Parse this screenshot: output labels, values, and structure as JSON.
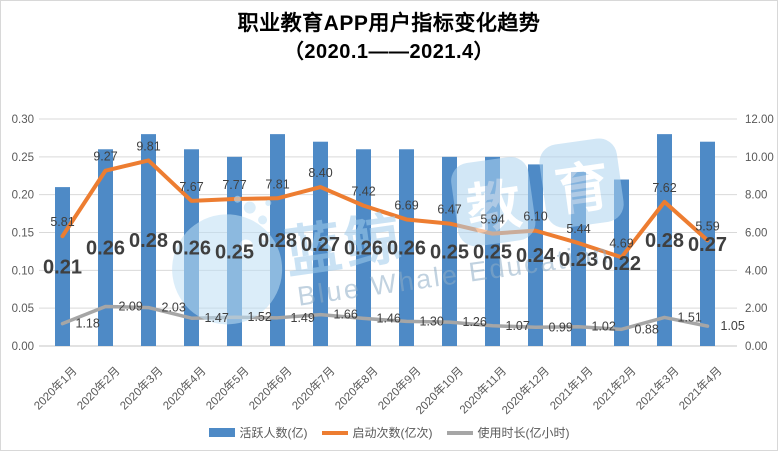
{
  "title": {
    "line1": "职业教育APP用户指标变化趋势",
    "line2": "（2020.1——2021.4）"
  },
  "legend": [
    {
      "label": "活跃人数(亿)",
      "type": "bar",
      "color": "#4E8AC6"
    },
    {
      "label": "启动次数(亿次)",
      "type": "line",
      "color": "#ED7D31"
    },
    {
      "label": "使用时长(亿小时)",
      "type": "line",
      "color": "#A6A6A6"
    }
  ],
  "watermark": {
    "brand_cn": "蓝鲸",
    "tile1": "教",
    "tile2": "育",
    "caption": "Blue Whale Education"
  },
  "colors": {
    "bar": "#4E8AC6",
    "launch_line": "#ED7D31",
    "usage_line": "#A6A6A6",
    "grid": "#D9D9D9",
    "axis_text": "#595959",
    "data_label": "#3F3F3F"
  },
  "chart_data": {
    "type": "combo",
    "title": "职业教育APP用户指标变化趋势（2020.1——2021.4）",
    "categories": [
      "2020年1月",
      "2020年2月",
      "2020年3月",
      "2020年4月",
      "2020年5月",
      "2020年6月",
      "2020年7月",
      "2020年8月",
      "2020年9月",
      "2020年10月",
      "2020年11月",
      "2020年12月",
      "2021年1月",
      "2021年2月",
      "2021年3月",
      "2021年4月"
    ],
    "series": [
      {
        "name": "活跃人数(亿)",
        "type": "bar",
        "axis": "left",
        "color": "#4E8AC6",
        "values": [
          0.21,
          0.26,
          0.28,
          0.26,
          0.25,
          0.28,
          0.27,
          0.26,
          0.26,
          0.25,
          0.25,
          0.24,
          0.23,
          0.22,
          0.28,
          0.27
        ]
      },
      {
        "name": "启动次数(亿次)",
        "type": "line",
        "axis": "right",
        "color": "#ED7D31",
        "values": [
          5.81,
          9.27,
          9.81,
          7.67,
          7.77,
          7.81,
          8.4,
          7.42,
          6.69,
          6.47,
          5.94,
          6.1,
          5.44,
          4.69,
          7.62,
          5.59
        ]
      },
      {
        "name": "使用时长(亿小时)",
        "type": "line",
        "axis": "right",
        "color": "#A6A6A6",
        "values": [
          1.18,
          2.09,
          2.03,
          1.47,
          1.52,
          1.49,
          1.66,
          1.46,
          1.3,
          1.26,
          1.07,
          0.99,
          1.02,
          0.88,
          1.51,
          1.05
        ]
      }
    ],
    "left_axis": {
      "min": 0,
      "max": 0.3,
      "ticks": [
        "0.00",
        "0.05",
        "0.10",
        "0.15",
        "0.20",
        "0.25",
        "0.30"
      ]
    },
    "right_axis": {
      "min": 0,
      "max": 12,
      "ticks": [
        "0.00",
        "2.00",
        "4.00",
        "6.00",
        "8.00",
        "10.00",
        "12.00"
      ]
    },
    "grid": true,
    "legend_position": "bottom",
    "x_label_rotation_deg": 45
  }
}
